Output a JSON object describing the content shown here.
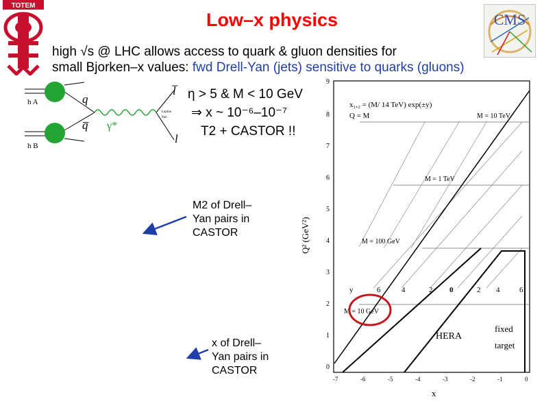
{
  "slide": {
    "title": "Low–x physics",
    "intro_line1": "high √s @ LHC allows access to quark & gluon densities for",
    "intro_line2_plain": "small Bjorken–x values: ",
    "intro_line2_highlight": "fwd Drell-Yan (jets) sensitive to quarks (gluons)",
    "highlight_color": "#1f3ea8",
    "title_color": "#ff0000"
  },
  "cuts": {
    "line1": "η > 5  & M < 10 GeV",
    "line2": "⇒ x ~ 10⁻⁶–10⁻⁷",
    "line3": "T2 + CASTOR !!"
  },
  "notes": {
    "m2_note_line1": "M2 of Drell–",
    "m2_note_line2": "Yan pairs in",
    "m2_note_line3": "CASTOR",
    "x_note_line1": "x of Drell–",
    "x_note_line2": "Yan pairs in",
    "x_note_line3": "CASTOR",
    "arrow_color": "#1f3ea8"
  },
  "logos": {
    "totem_label": "TOTEM",
    "cms_label": "CMS",
    "totem_color": "#c8102e"
  },
  "feynman": {
    "hA": "h A",
    "hB": "h B",
    "q": "q",
    "qbar": "q̅",
    "gamma": "γ*",
    "lbar": "l̅",
    "l": "l",
    "proc_small_1": "Lepton",
    "proc_small_2": "Pair",
    "blob_color": "#22a535",
    "gamma_color": "#22a535"
  },
  "kinematic_plot": {
    "formula": "x₁,₂ = (M/ 14 TeV) exp(±y)",
    "q2_def": "Q = M",
    "m_10tev": "M = 10 TeV",
    "m_1tev": "M = 1 TeV",
    "m_100gev": "M = 100 GeV",
    "m_10gev": "M = 10 GeV",
    "y_label": "y",
    "y_ticks": [
      "6",
      "4",
      "2",
      "0",
      "2",
      "4",
      "6"
    ],
    "ylabel": "Q²  (GeV²)",
    "xlabel": "x",
    "y_exp_ticks": [
      "9",
      "8",
      "7",
      "6",
      "5",
      "4",
      "3",
      "2",
      "1",
      "0"
    ],
    "x_exp_ticks": [
      "-7",
      "-6",
      "-5",
      "-4",
      "-3",
      "-2",
      "-1",
      "0"
    ],
    "hera": "HERA",
    "fixed_target_1": "fixed",
    "fixed_target_2": "target",
    "highlight_circle_color": "#c4161c"
  }
}
